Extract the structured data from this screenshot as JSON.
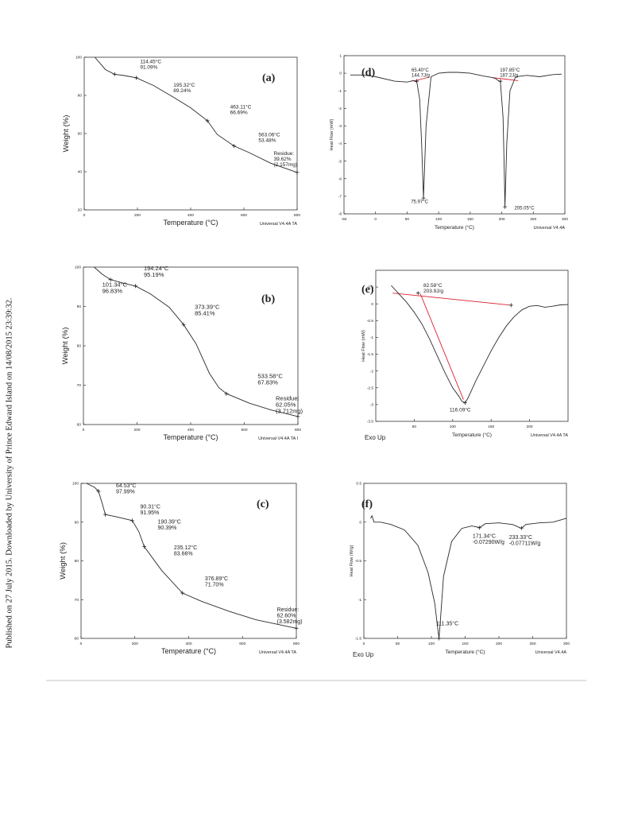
{
  "page": {
    "sidebar_text": "Published on 27 July 2015. Downloaded by University of Prince Edward Island on 14/08/2015 23:39:32."
  },
  "chart_data": [
    {
      "id": "a",
      "panel_label": "(a)",
      "type": "line",
      "xlabel": "Temperature (°C)",
      "ylabel": "Weight (%)",
      "xlim": [
        0,
        800
      ],
      "ylim": [
        20,
        100
      ],
      "xticks": [
        0,
        200,
        400,
        600,
        800
      ],
      "yticks": [
        20,
        40,
        60,
        80,
        100
      ],
      "footer": "Universal V4.4A TA",
      "footer_left": "",
      "series": [
        {
          "x": [
            40,
            80,
            114.45,
            150,
            195.32,
            260,
            330,
            400,
            463.11,
            500,
            563.06,
            620,
            700,
            800
          ],
          "y": [
            100,
            93.5,
            91.09,
            90.4,
            89.24,
            85.2,
            79.5,
            73.5,
            66.69,
            59.5,
            53.48,
            50.0,
            44.5,
            39.62
          ]
        }
      ],
      "markers": [
        {
          "x": 114.45,
          "y": 91.09
        },
        {
          "x": 195.32,
          "y": 89.24
        },
        {
          "x": 463.11,
          "y": 66.69
        },
        {
          "x": 563.06,
          "y": 53.48
        },
        {
          "x": 800,
          "y": 39.62
        }
      ],
      "annotations": [
        {
          "lines": [
            "114.45°C",
            "91.09%"
          ],
          "x": 210,
          "y": 96.8
        },
        {
          "lines": [
            "195.32°C",
            "89.24%"
          ],
          "x": 335,
          "y": 84.6
        },
        {
          "lines": [
            "463.11°C",
            "66.69%"
          ],
          "x": 548,
          "y": 73.2
        },
        {
          "lines": [
            "563.06°C",
            "53.48%"
          ],
          "x": 655,
          "y": 58.6
        },
        {
          "lines": [
            "Residue:",
            "39.62%",
            "(2.157mg)"
          ],
          "x": 712,
          "y": 48.8
        }
      ],
      "secondary": []
    },
    {
      "id": "b",
      "panel_label": "(b)",
      "type": "line",
      "xlabel": "Temperature (°C)",
      "ylabel": "Weight (%)",
      "xlim": [
        0,
        800
      ],
      "ylim": [
        60,
        100
      ],
      "xticks": [
        0,
        200,
        400,
        600,
        800
      ],
      "yticks": [
        60,
        70,
        80,
        90,
        100
      ],
      "footer": "Universal V4.4A TA I",
      "footer_left": "",
      "series": [
        {
          "x": [
            40,
            70,
            101.34,
            150,
            194.24,
            250,
            320,
            373.39,
            420,
            470,
            505,
            533.58,
            620,
            700,
            800
          ],
          "y": [
            100,
            98.2,
            96.83,
            95.9,
            95.19,
            93.2,
            89.8,
            85.41,
            80.5,
            73.0,
            69.4,
            67.83,
            65.4,
            63.7,
            62.05
          ]
        }
      ],
      "markers": [
        {
          "x": 101.34,
          "y": 96.83
        },
        {
          "x": 194.24,
          "y": 95.19
        },
        {
          "x": 373.39,
          "y": 85.41
        },
        {
          "x": 533.58,
          "y": 67.83
        },
        {
          "x": 800,
          "y": 62.05
        }
      ],
      "annotations": [
        {
          "lines": [
            "101.34°C",
            "96.83%"
          ],
          "x": 70,
          "y": 95.1
        },
        {
          "lines": [
            "194.24°C",
            "95.19%"
          ],
          "x": 225,
          "y": 99.2
        },
        {
          "lines": [
            "373.39°C",
            "85.41%"
          ],
          "x": 415,
          "y": 89.4
        },
        {
          "lines": [
            "533.58°C",
            "67.83%"
          ],
          "x": 650,
          "y": 71.8
        },
        {
          "lines": [
            "Residue:",
            "62.05%",
            "(3.712mg)"
          ],
          "x": 717,
          "y": 66.2
        }
      ],
      "secondary": []
    },
    {
      "id": "c",
      "panel_label": "(c)",
      "type": "line",
      "xlabel": "Temperature (°C)",
      "ylabel": "Weight (%)",
      "xlim": [
        0,
        800
      ],
      "ylim": [
        60,
        100
      ],
      "xticks": [
        0,
        200,
        400,
        600,
        800
      ],
      "yticks": [
        60,
        70,
        80,
        90,
        100
      ],
      "footer": "Universal V4.4A TA",
      "footer_left": "",
      "series": [
        {
          "x": [
            20,
            50,
            64.53,
            80,
            90.31,
            130,
            190.39,
            215,
            235.12,
            300,
            376.89,
            450,
            550,
            650,
            800
          ],
          "y": [
            100,
            99.0,
            97.99,
            94.5,
            91.95,
            91.4,
            90.39,
            87.5,
            83.66,
            77.5,
            71.7,
            69.5,
            67.0,
            64.8,
            62.6
          ]
        }
      ],
      "markers": [
        {
          "x": 64.53,
          "y": 97.99
        },
        {
          "x": 90.31,
          "y": 91.95
        },
        {
          "x": 190.39,
          "y": 90.39
        },
        {
          "x": 235.12,
          "y": 83.66
        },
        {
          "x": 376.89,
          "y": 71.7
        },
        {
          "x": 800,
          "y": 62.6
        }
      ],
      "annotations": [
        {
          "lines": [
            "64.53°C",
            "97.99%"
          ],
          "x": 130,
          "y": 99.0
        },
        {
          "lines": [
            "90.31°C",
            "91.95%"
          ],
          "x": 220,
          "y": 93.5
        },
        {
          "lines": [
            "190.39°C",
            "90.39%"
          ],
          "x": 285,
          "y": 89.6
        },
        {
          "lines": [
            "235.12°C",
            "83.66%"
          ],
          "x": 345,
          "y": 83.0
        },
        {
          "lines": [
            "376.89°C",
            "71.70%"
          ],
          "x": 460,
          "y": 75.0
        },
        {
          "lines": [
            "Residue:",
            "62.60%",
            "(3.582mg)"
          ],
          "x": 728,
          "y": 67.0
        }
      ],
      "secondary": []
    },
    {
      "id": "d",
      "panel_label": "(d)",
      "type": "line",
      "xlabel": "Temperature (°C)",
      "ylabel": "Heat Flow (mW)",
      "xlim": [
        -50,
        300
      ],
      "ylim": [
        -8,
        1
      ],
      "xticks": [
        -50,
        0,
        50,
        100,
        150,
        200,
        250,
        300
      ],
      "yticks": [
        -8,
        -7,
        -6,
        -5,
        -4,
        -3,
        -2,
        -1,
        0,
        1
      ],
      "footer": "Universal V4.4A",
      "footer_left": "",
      "series": [
        {
          "x": [
            -40,
            -20,
            0,
            30,
            50,
            60,
            65.4,
            70,
            73,
            75.97,
            80,
            88,
            100,
            115,
            130,
            150,
            170,
            185,
            190,
            197.85,
            202,
            204,
            205.05,
            208,
            213,
            222,
            240,
            260,
            280,
            295
          ],
          "y": [
            -0.1,
            -0.1,
            -0.2,
            -0.45,
            -0.5,
            -0.42,
            -0.5,
            -1.5,
            -4.0,
            -7.1,
            -3.0,
            -0.2,
            0.0,
            0.05,
            0.05,
            0.0,
            -0.15,
            -0.25,
            -0.3,
            -0.5,
            -2.5,
            -5.5,
            -7.6,
            -4.0,
            -1.0,
            -0.2,
            -0.12,
            -0.2,
            -0.08,
            -0.05
          ]
        }
      ],
      "markers": [
        {
          "x": 65.4,
          "y": -0.45
        },
        {
          "x": 197.85,
          "y": -0.45
        },
        {
          "x": 75.97,
          "y": -7.1
        },
        {
          "x": 205.05,
          "y": -7.6
        }
      ],
      "annotations": [
        {
          "lines": [
            "65.40°C",
            "144.7J/g"
          ],
          "x": 57,
          "y": 0.1
        },
        {
          "lines": [
            "197.85°C",
            "187.2J/g"
          ],
          "x": 197,
          "y": 0.1
        },
        {
          "lines": [
            "75.97°C"
          ],
          "x": 56,
          "y": -7.4
        },
        {
          "lines": [
            "205.05°C"
          ],
          "x": 220,
          "y": -7.75
        }
      ],
      "secondary": [
        {
          "x": [
            60,
            85
          ],
          "y": [
            -0.45,
            -0.22
          ]
        },
        {
          "x": [
            185,
            226
          ],
          "y": [
            -0.25,
            -0.42
          ]
        }
      ]
    },
    {
      "id": "e",
      "panel_label": "(e)",
      "type": "line",
      "xlabel": "Temperature (°C)",
      "ylabel": "Heat Flow (mW)",
      "xlim": [
        0,
        250
      ],
      "ylim": [
        -3.5,
        1
      ],
      "xticks": [
        50,
        100,
        150,
        200
      ],
      "yticks": [
        -3.5,
        -3,
        -2.5,
        -2,
        -1.5,
        -1,
        -0.5,
        0,
        0.5
      ],
      "footer": "Universal V4.4A TA",
      "footer_left": "Exo Up",
      "series": [
        {
          "x": [
            20,
            30,
            40,
            50,
            60,
            70,
            80,
            90,
            100,
            108,
            112,
            116.09,
            120,
            125,
            130,
            140,
            150,
            160,
            170,
            180,
            190,
            200,
            210,
            220,
            230,
            240,
            250
          ],
          "y": [
            0.55,
            0.3,
            0.05,
            -0.25,
            -0.6,
            -1.05,
            -1.55,
            -2.05,
            -2.5,
            -2.75,
            -2.9,
            -2.95,
            -2.8,
            -2.55,
            -2.3,
            -1.85,
            -1.4,
            -1.0,
            -0.65,
            -0.38,
            -0.18,
            -0.07,
            -0.05,
            -0.1,
            -0.07,
            -0.03,
            -0.02
          ]
        }
      ],
      "markers": [
        {
          "x": 55,
          "y": 0.32
        },
        {
          "x": 176,
          "y": -0.04
        },
        {
          "x": 116.09,
          "y": -2.95
        }
      ],
      "annotations": [
        {
          "lines": [
            "82.58°C",
            "203.9J/g"
          ],
          "x": 62,
          "y": 0.5
        },
        {
          "lines": [
            "116.09°C"
          ],
          "x": 96,
          "y": -3.2
        }
      ],
      "secondary": [
        {
          "x": [
            22,
            176
          ],
          "y": [
            0.32,
            -0.04
          ]
        },
        {
          "x": [
            58,
            114
          ],
          "y": [
            0.3,
            -2.85
          ]
        }
      ]
    },
    {
      "id": "f",
      "panel_label": "(f)",
      "type": "line",
      "xlabel": "Temperature (°C)",
      "ylabel": "Heat Flow (W/g)",
      "xlim": [
        0,
        300
      ],
      "ylim": [
        -1.5,
        0.5
      ],
      "xticks": [
        0,
        50,
        100,
        150,
        200,
        250,
        300
      ],
      "yticks": [
        -1.5,
        -1,
        -0.5,
        0,
        0.5
      ],
      "footer": "Universal V4.4A",
      "footer_left": "Exo Up",
      "series": [
        {
          "x": [
            10,
            12,
            15,
            25,
            40,
            60,
            80,
            95,
            105,
            109,
            111.35,
            113,
            118,
            130,
            145,
            160,
            171.34,
            180,
            200,
            220,
            233.33,
            240,
            260,
            280,
            300
          ],
          "y": [
            0.05,
            0.08,
            0.0,
            0.0,
            -0.03,
            -0.1,
            -0.3,
            -0.65,
            -1.05,
            -1.35,
            -1.5,
            -1.3,
            -0.7,
            -0.25,
            -0.08,
            -0.05,
            -0.07,
            -0.02,
            -0.01,
            -0.03,
            -0.08,
            -0.03,
            -0.01,
            0.0,
            0.05
          ]
        }
      ],
      "markers": [
        {
          "x": 171.34,
          "y": -0.073
        },
        {
          "x": 233.33,
          "y": -0.077
        },
        {
          "x": 111.35,
          "y": -1.5
        }
      ],
      "annotations": [
        {
          "lines": [
            "171.34°C",
            "-0.07290W/g"
          ],
          "x": 161,
          "y": -0.2
        },
        {
          "lines": [
            "233.33°C",
            "-0.07711W/g"
          ],
          "x": 215,
          "y": -0.22
        },
        {
          "lines": [
            "111.35°C"
          ],
          "x": 107,
          "y": -1.33
        }
      ],
      "secondary": []
    }
  ]
}
